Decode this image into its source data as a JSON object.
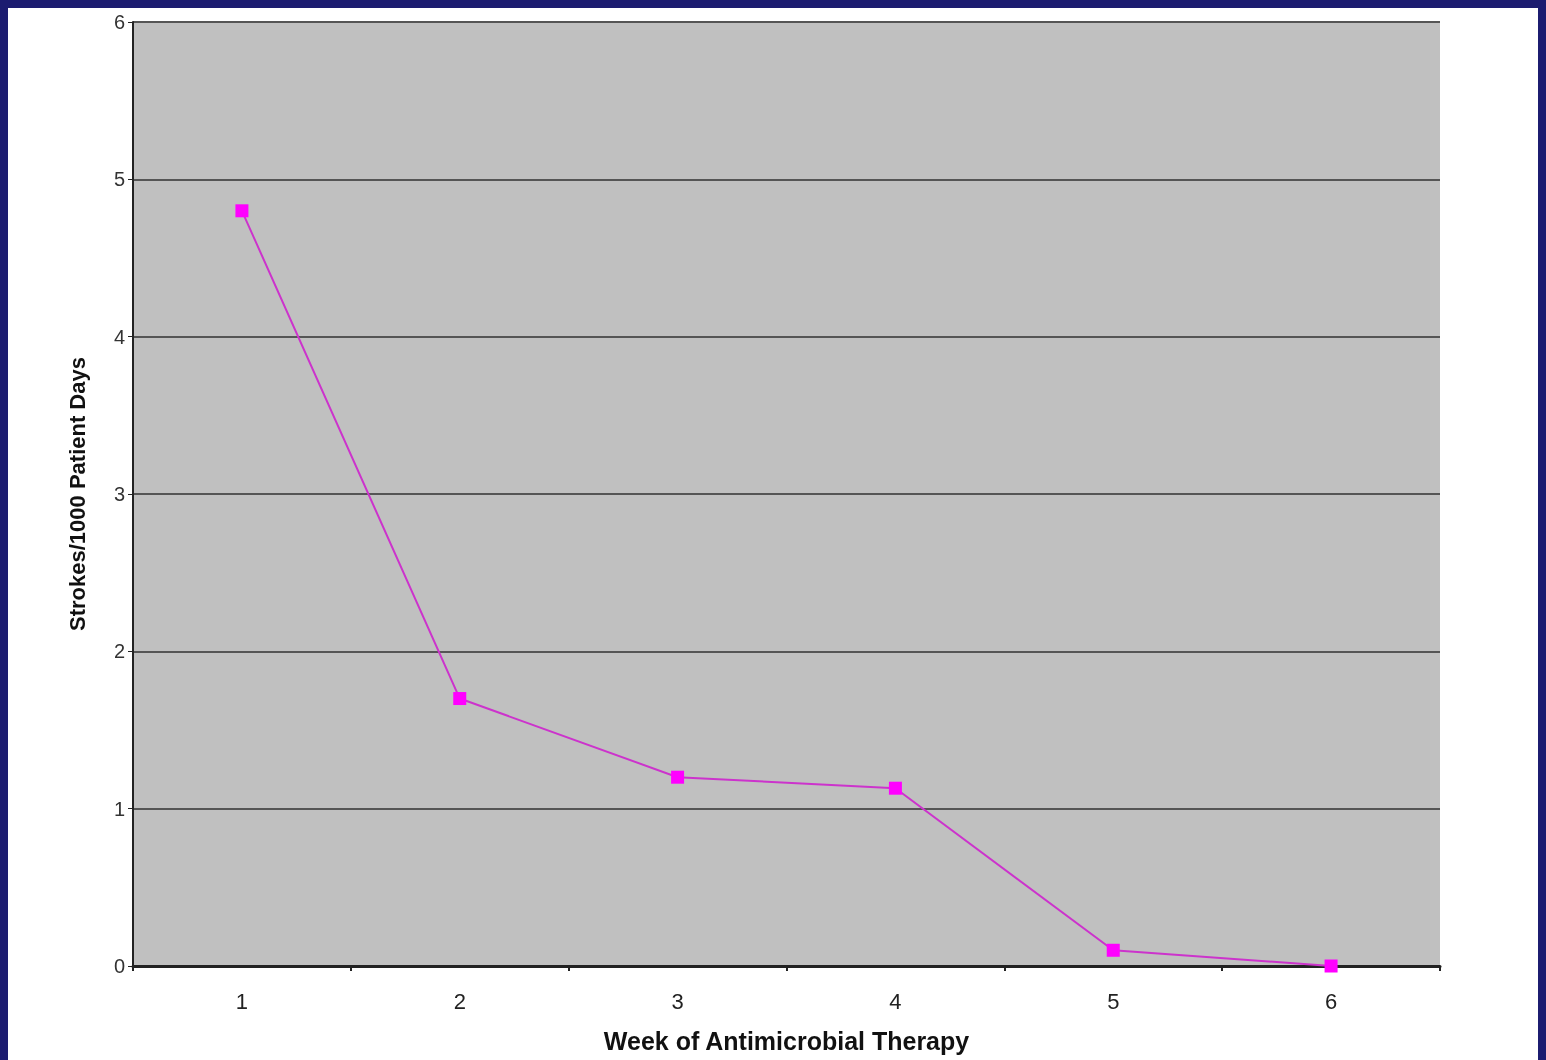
{
  "chart_data": {
    "type": "line",
    "xlabel": "Week of Antimicrobial Therapy",
    "ylabel": "Strokes/1000 Patient Days",
    "categories": [
      "1",
      "2",
      "3",
      "4",
      "5",
      "6"
    ],
    "series": [
      {
        "color": "#cc33cc",
        "values": [
          4.8,
          1.7,
          1.2,
          1.13,
          0.1,
          0
        ]
      }
    ],
    "ylim": [
      0,
      6
    ],
    "yticks": [
      0,
      1,
      2,
      3,
      4,
      5,
      6
    ],
    "grid": "y",
    "marker": "square",
    "line_style": "solid"
  }
}
